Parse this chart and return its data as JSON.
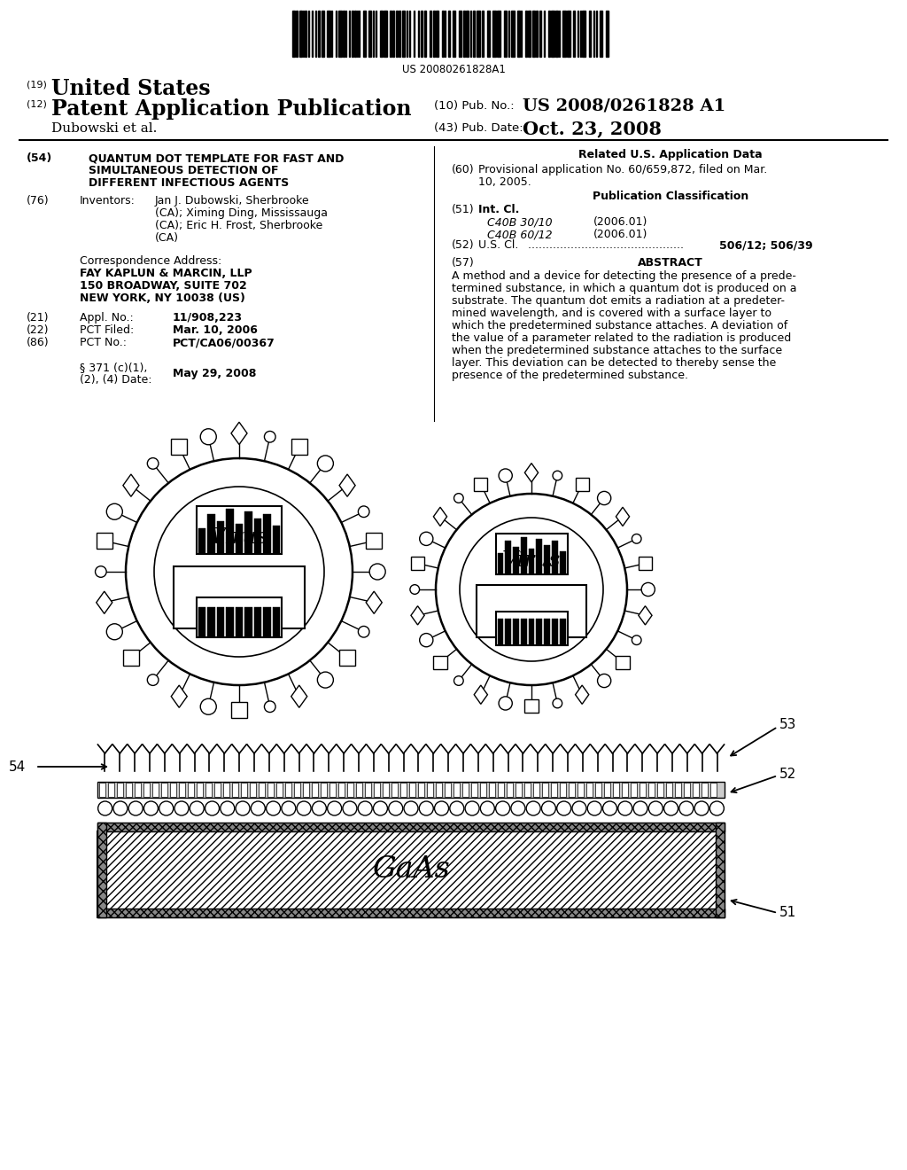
{
  "barcode_text": "US 20080261828A1",
  "country": "United States",
  "pub_type": "Patent Application Publication",
  "pub_no_label": "(10) Pub. No.:",
  "pub_no_value": "US 2008/0261828 A1",
  "pub_date_label": "(43) Pub. Date:",
  "pub_date_value": "Oct. 23, 2008",
  "assignee": "Dubowski et al.",
  "title_num": "(54)",
  "title_line1": "QUANTUM DOT TEMPLATE FOR FAST AND",
  "title_line2": "SIMULTANEOUS DETECTION OF",
  "title_line3": "DIFFERENT INFECTIOUS AGENTS",
  "inventors_num": "(76)",
  "inventors_label_text": "Inventors:",
  "inv_line1": "Jan J. Dubowski, Sherbrooke",
  "inv_line2": "(CA); Ximing Ding, Mississauga",
  "inv_line3": "(CA); Eric H. Frost, Sherbrooke",
  "inv_line4": "(CA)",
  "corr_line0": "Correspondence Address:",
  "corr_line1": "FAY KAPLUN & MARCIN, LLP",
  "corr_line2": "150 BROADWAY, SUITE 702",
  "corr_line3": "NEW YORK, NY 10038 (US)",
  "appl_num": "(21)",
  "appl_label": "Appl. No.:",
  "appl_value": "11/908,223",
  "pct_filed_num": "(22)",
  "pct_filed_label": "PCT Filed:",
  "pct_filed_value": "Mar. 10, 2006",
  "pct_no_num": "(86)",
  "pct_no_label": "PCT No.:",
  "pct_no_value": "PCT/CA06/00367",
  "par371_line1": "§ 371 (c)(1),",
  "par371_line2": "(2), (4) Date:",
  "par371_value": "May 29, 2008",
  "related_header": "Related U.S. Application Data",
  "prov_num": "(60)",
  "prov_text_line1": "Provisional application No. 60/659,872, filed on Mar.",
  "prov_text_line2": "10, 2005.",
  "pub_class_header": "Publication Classification",
  "int_cl_num": "(51)",
  "int_cl_label": "Int. Cl.",
  "int_cl_1": "C40B 30/10",
  "int_cl_1_year": "(2006.01)",
  "int_cl_2": "C40B 60/12",
  "int_cl_2_year": "(2006.01)",
  "us_cl_num": "(52)",
  "us_cl_label": "U.S. Cl.",
  "us_cl_value": "506/12; 506/39",
  "abstract_num": "(57)",
  "abstract_header": "ABSTRACT",
  "abstract_line1": "A method and a device for detecting the presence of a prede-",
  "abstract_line2": "termined substance, in which a quantum dot is produced on a",
  "abstract_line3": "substrate. The quantum dot emits a radiation at a predeter-",
  "abstract_line4": "mined wavelength, and is covered with a surface layer to",
  "abstract_line5": "which the predetermined substance attaches. A deviation of",
  "abstract_line6": "the value of a parameter related to the radiation is produced",
  "abstract_line7": "when the predetermined substance attaches to the surface",
  "abstract_line8": "layer. This deviation can be detected to thereby sense the",
  "abstract_line9": "presence of the predetermined substance.",
  "bg_color": "#ffffff",
  "text_color": "#000000"
}
